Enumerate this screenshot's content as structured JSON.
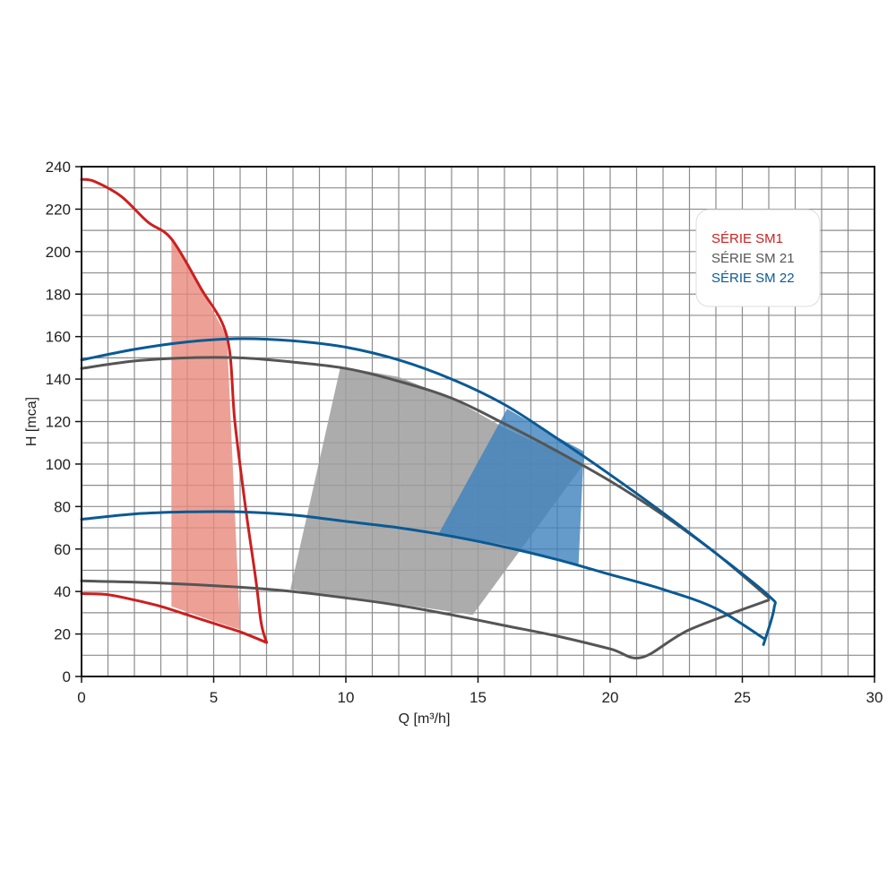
{
  "chart_data": {
    "type": "line",
    "xlabel": "Q [m³/h]",
    "ylabel": "H [mca]",
    "xlim": [
      0,
      30
    ],
    "ylim": [
      0,
      240
    ],
    "grid": true,
    "x_ticks": [
      "0",
      "5",
      "10",
      "15",
      "20",
      "25",
      "30"
    ],
    "y_ticks": [
      "0",
      "20",
      "40",
      "60",
      "80",
      "100",
      "120",
      "140",
      "160",
      "180",
      "200",
      "220",
      "240"
    ],
    "legend_position": "top-right",
    "series": [
      {
        "name": "SÉRIE SM1",
        "color": "#cc1f1f",
        "fill": "#e88a7c",
        "region": [
          [
            3.4,
            206
          ],
          [
            4.5,
            183
          ],
          [
            5.5,
            160
          ],
          [
            6.0,
            22
          ],
          [
            5.0,
            26
          ],
          [
            3.4,
            33
          ]
        ],
        "curves": [
          [
            [
              0,
              234
            ],
            [
              0.5,
              233
            ],
            [
              1.5,
              226
            ],
            [
              2.5,
              214
            ],
            [
              3.4,
              206
            ],
            [
              4.5,
              183
            ],
            [
              5.5,
              160
            ],
            [
              5.8,
              120
            ],
            [
              6.2,
              80
            ],
            [
              6.6,
              45
            ],
            [
              6.8,
              25
            ],
            [
              7.0,
              16
            ]
          ],
          [
            [
              0,
              39
            ],
            [
              1,
              38.5
            ],
            [
              2,
              36
            ],
            [
              3,
              33
            ],
            [
              4,
              29
            ],
            [
              5,
              25
            ],
            [
              6,
              21
            ],
            [
              7.0,
              16
            ]
          ]
        ]
      },
      {
        "name": "SÉRIE SM 21",
        "color": "#555555",
        "fill": "#9e9e9e",
        "region": [
          [
            9.8,
            146
          ],
          [
            12,
            141
          ],
          [
            14,
            131
          ],
          [
            16,
            117
          ],
          [
            19,
            100
          ],
          [
            14.8,
            29
          ],
          [
            11,
            36
          ],
          [
            7.9,
            41
          ]
        ],
        "curves": [
          [
            [
              0,
              145
            ],
            [
              2,
              148.5
            ],
            [
              4,
              150
            ],
            [
              6,
              150
            ],
            [
              8,
              148
            ],
            [
              10,
              145
            ],
            [
              12,
              139
            ],
            [
              14,
              131
            ],
            [
              16,
              119
            ],
            [
              18,
              106
            ],
            [
              20,
              92
            ],
            [
              22,
              76
            ],
            [
              24,
              58
            ],
            [
              26,
              37
            ]
          ],
          [
            [
              0,
              45
            ],
            [
              3,
              44
            ],
            [
              6,
              42
            ],
            [
              8,
              40
            ],
            [
              10,
              37
            ],
            [
              12,
              33.5
            ],
            [
              14,
              29
            ],
            [
              16,
              24
            ],
            [
              18,
              19
            ],
            [
              20,
              13
            ],
            [
              21.2,
              9
            ],
            [
              23,
              22
            ],
            [
              26,
              36
            ]
          ]
        ]
      },
      {
        "name": "SÉRIE SM 22",
        "color": "#0a5a94",
        "fill": "#3d82bd",
        "region": [
          [
            16.1,
            126
          ],
          [
            17.5,
            116
          ],
          [
            19.0,
            106
          ],
          [
            18.8,
            52
          ],
          [
            16,
            62
          ],
          [
            13.5,
            67
          ]
        ],
        "curves": [
          [
            [
              0,
              149
            ],
            [
              2,
              154
            ],
            [
              4,
              157.5
            ],
            [
              6,
              159
            ],
            [
              8,
              158
            ],
            [
              10,
              155
            ],
            [
              12,
              149
            ],
            [
              14,
              140
            ],
            [
              16,
              128
            ],
            [
              18,
              112
            ],
            [
              20,
              95
            ],
            [
              22,
              77
            ],
            [
              24,
              58
            ],
            [
              26,
              38
            ],
            [
              26.2,
              32
            ],
            [
              25.8,
              15
            ]
          ],
          [
            [
              0,
              74
            ],
            [
              2,
              76.5
            ],
            [
              4,
              77.5
            ],
            [
              6,
              77.5
            ],
            [
              8,
              76
            ],
            [
              10,
              73
            ],
            [
              12,
              70
            ],
            [
              14,
              66
            ],
            [
              16,
              61
            ],
            [
              18,
              55
            ],
            [
              20,
              48
            ],
            [
              22,
              41
            ],
            [
              24,
              32
            ],
            [
              25.8,
              18
            ]
          ]
        ]
      }
    ]
  }
}
